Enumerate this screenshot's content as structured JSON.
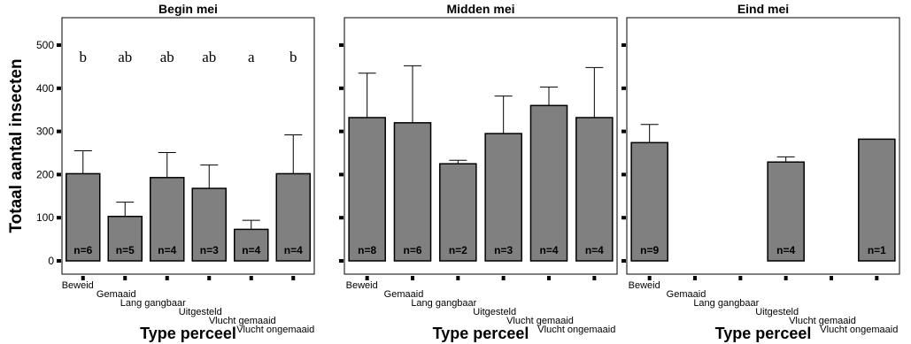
{
  "chart_data": {
    "type": "bar",
    "ylabel": "Totaal aantal insecten",
    "ylim": [
      0,
      540
    ],
    "yticks": [
      "0",
      "100",
      "200",
      "300",
      "400",
      "500"
    ],
    "categories": [
      "Beweid",
      "Gemaaid",
      "Lang gangbaar",
      "Uitgesteld",
      "Vlucht gemaaid",
      "Vlucht ongemaaid"
    ],
    "bar_color": "#808080",
    "panels": [
      {
        "title": "Begin mei",
        "xlabel": "Type perceel",
        "values": [
          202,
          103,
          193,
          168,
          73,
          202
        ],
        "errors": [
          53,
          33,
          58,
          54,
          21,
          90
        ],
        "n": [
          "n=6",
          "n=5",
          "n=4",
          "n=3",
          "n=4",
          "n=4"
        ],
        "letters": [
          "b",
          "ab",
          "ab",
          "ab",
          "a",
          "b"
        ]
      },
      {
        "title": "Midden mei",
        "xlabel": "Type perceel",
        "values": [
          332,
          320,
          225,
          295,
          360,
          332
        ],
        "errors": [
          103,
          132,
          8,
          87,
          43,
          116
        ],
        "n": [
          "n=8",
          "n=6",
          "n=2",
          "n=3",
          "n=4",
          "n=4"
        ],
        "letters": [
          "",
          "",
          "",
          "",
          "",
          ""
        ]
      },
      {
        "title": "Eind mei",
        "xlabel": "Type perceel",
        "values": [
          274,
          null,
          null,
          229,
          null,
          282
        ],
        "errors": [
          42,
          null,
          null,
          12,
          null,
          null
        ],
        "n": [
          "n=9",
          "",
          "",
          "n=4",
          "",
          "n=1"
        ],
        "letters": [
          "",
          "",
          "",
          "",
          "",
          ""
        ]
      }
    ]
  }
}
